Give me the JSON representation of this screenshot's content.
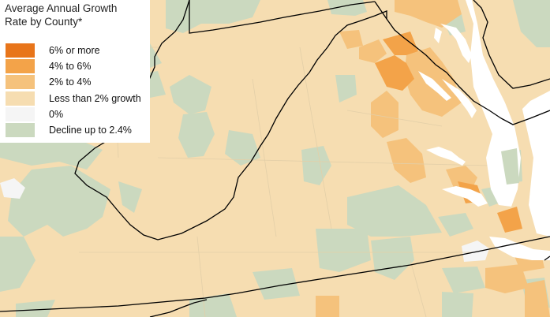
{
  "legend": {
    "title_line1": "Average Annual Growth",
    "title_line2": "Rate by County*",
    "items": [
      {
        "label": "6% or more",
        "color": "#E8751A"
      },
      {
        "label": "4% to 6%",
        "color": "#F3A349"
      },
      {
        "label": "2% to 4%",
        "color": "#F5C27C"
      },
      {
        "label": "Less than 2% growth",
        "color": "#F6DDB1"
      },
      {
        "label": "0%",
        "color": "#F5F5F5"
      },
      {
        "label": "Decline up to 2.4%",
        "color": "#CBD9BF"
      }
    ]
  },
  "colors": {
    "water": "#FFFFFF",
    "state_border": "#000000",
    "county_border": "#E3CFA8"
  }
}
